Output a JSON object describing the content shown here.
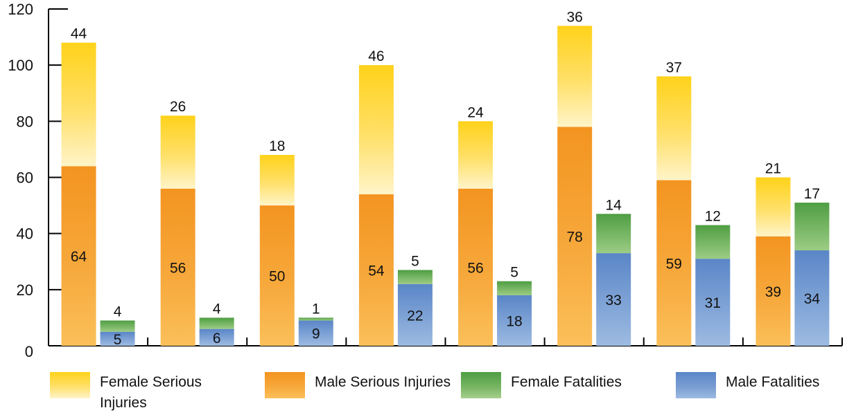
{
  "chart_data": {
    "type": "bar",
    "stacked": true,
    "grouped": true,
    "ylim": [
      0,
      120
    ],
    "y_ticks": [
      "0",
      "20",
      "40",
      "60",
      "80",
      "100",
      "120"
    ],
    "groups": 8,
    "series": [
      {
        "name": "Male Serious Injuries",
        "stack": "injuries",
        "color": "#f39420",
        "values": [
          64,
          56,
          50,
          54,
          56,
          78,
          59,
          39
        ]
      },
      {
        "name": "Female Serious Injuries",
        "stack": "injuries",
        "color": "#ffd21a",
        "values": [
          44,
          26,
          18,
          46,
          24,
          36,
          37,
          21
        ]
      },
      {
        "name": "Male Fatalities",
        "stack": "fatalities",
        "color": "#5a86c7",
        "values": [
          5,
          6,
          9,
          22,
          18,
          33,
          31,
          34
        ]
      },
      {
        "name": "Female Fatalities",
        "stack": "fatalities",
        "color": "#4f9e43",
        "values": [
          4,
          4,
          1,
          5,
          5,
          14,
          12,
          17
        ]
      }
    ],
    "legend_position": "bottom",
    "grid": false
  },
  "legend": [
    {
      "label": "Female Serious Injuries",
      "icon": "yellow-swatch"
    },
    {
      "label": "Male Serious Injuries",
      "icon": "orange-swatch"
    },
    {
      "label": "Female Fatalities",
      "icon": "green-swatch"
    },
    {
      "label": "Male Fatalities",
      "icon": "blue-swatch"
    }
  ]
}
